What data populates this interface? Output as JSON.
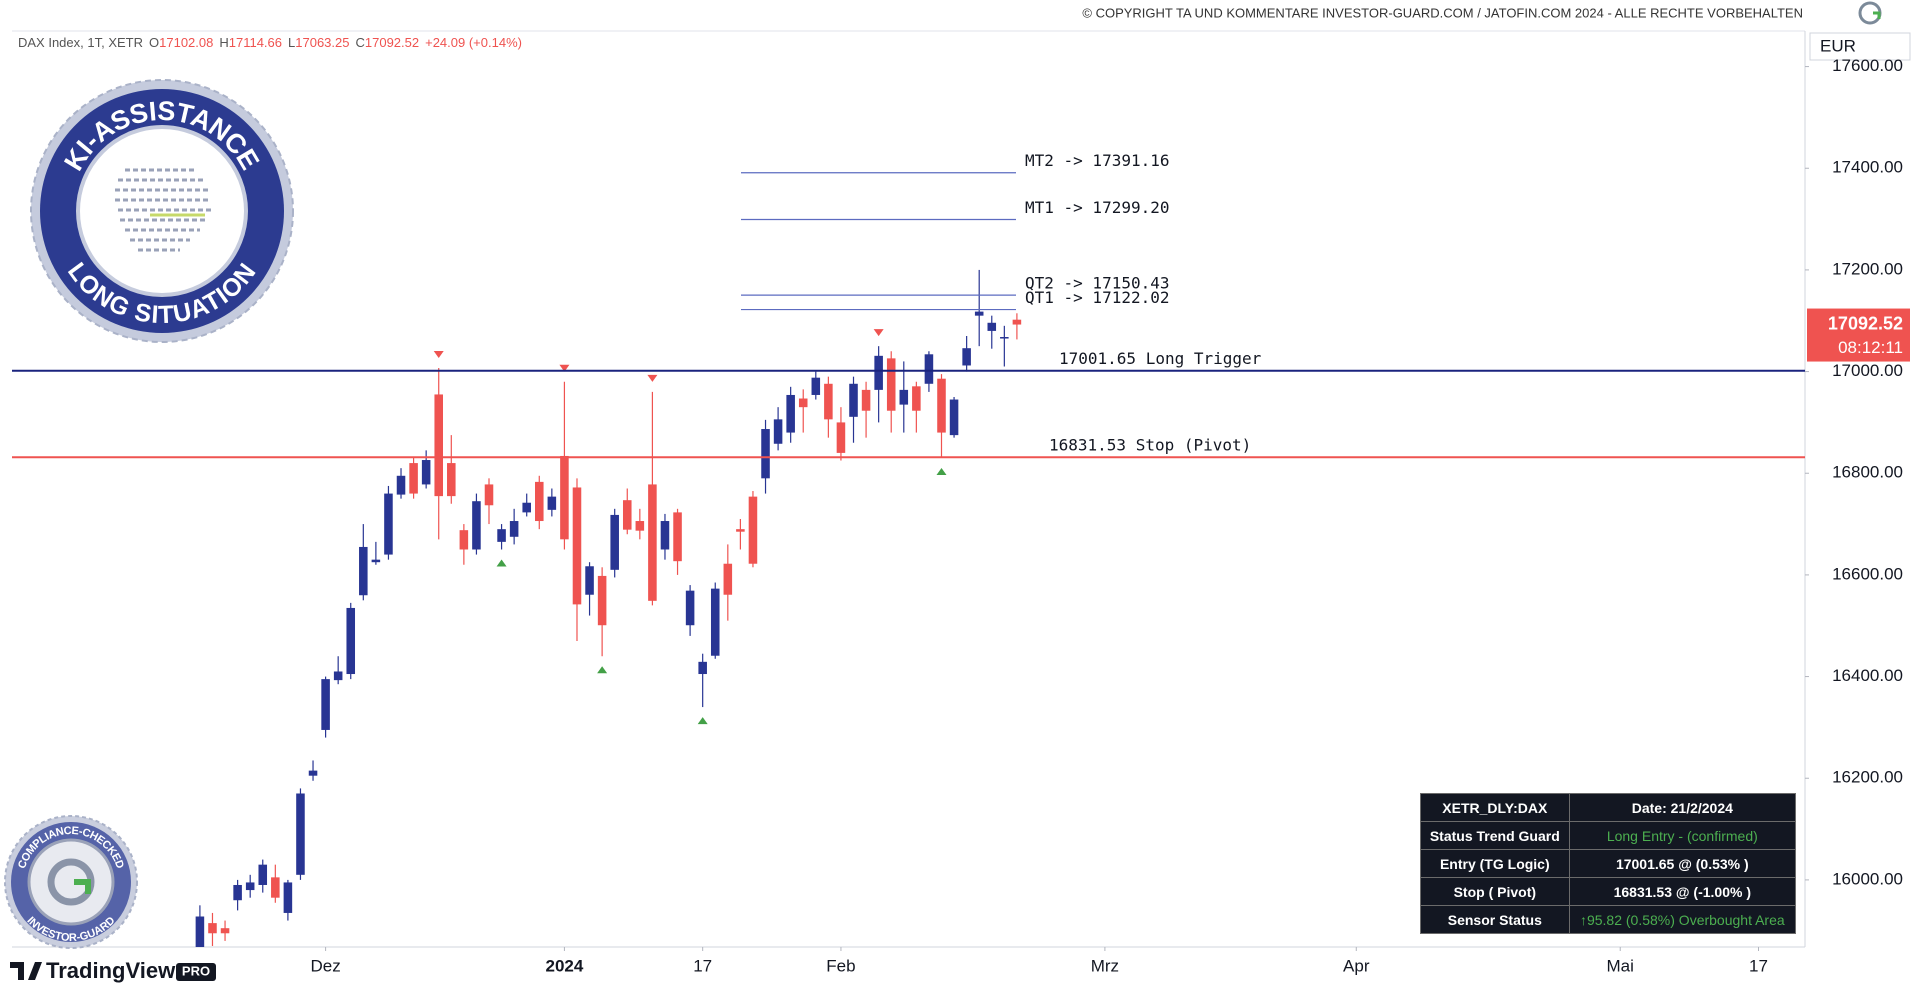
{
  "copyright": "© COPYRIGHT TA UND KOMMENTARE INVESTOR-GUARD.COM / JATOFIN.COM 2024 - ALLE RECHTE VORBEHALTEN",
  "currency": "EUR",
  "badge": {
    "top": "KI-ASSISTANCE",
    "bottom": "LONG SITUATION"
  },
  "compliance": {
    "top": "COMPLIANCE-CHECKED",
    "bottom": "INVESTOR-GUARD"
  },
  "brand": {
    "name": "TradingView",
    "tier": "PRO"
  },
  "table": {
    "rows": [
      [
        "XETR_DLY:DAX",
        "Date: 21/2/2024"
      ],
      [
        "Status Trend Guard",
        "Long Entry - (confirmed)"
      ],
      [
        "Entry (TG Logic)",
        "17001.65 @ (0.53% )"
      ],
      [
        "Stop ( Pivot)",
        "16831.53 @ (-1.00% )"
      ],
      [
        "Sensor Status",
        "↑95.82 (0.58%)  Overbought Area"
      ]
    ]
  },
  "chart_data": {
    "type": "candlestick",
    "title": "DAX Index, 1T, XETR",
    "legend_labels": [
      "O",
      "H",
      "L",
      "C"
    ],
    "change": "+24.09 (+0.14%)",
    "countdown": "08:12:11",
    "up_color": "#283593",
    "down_color": "#ef5350",
    "x": [
      -10,
      -9,
      -8,
      -7,
      -6,
      -5,
      -4,
      -3,
      -2,
      -1,
      0,
      1,
      2,
      3,
      4,
      5,
      6,
      7,
      8,
      9,
      10,
      11,
      12,
      13,
      14,
      15,
      16,
      17,
      18,
      19,
      20,
      21,
      22,
      23,
      24,
      25,
      26,
      27,
      28,
      29,
      30,
      31,
      32,
      33,
      34,
      35,
      36,
      37,
      38,
      39,
      40,
      41,
      42,
      43,
      44,
      45,
      46,
      47,
      48,
      49,
      50,
      51,
      52,
      53,
      54,
      55
    ],
    "open": [
      15850,
      15915,
      15905,
      15960,
      15980,
      15990,
      16005,
      15935,
      16010,
      16205,
      16295,
      16393,
      16405,
      16560,
      16625,
      16640,
      16758,
      16820,
      16778,
      16955,
      16820,
      16688,
      16650,
      16778,
      16665,
      16675,
      16723,
      16783,
      16728,
      16834,
      16772,
      16561,
      16598,
      16610,
      16747,
      16706,
      16778,
      16650,
      16723,
      16501,
      16405,
      16441,
      16622,
      16690,
      16754,
      16790,
      16858,
      16880,
      16947,
      16954,
      16976,
      16900,
      16911,
      16964,
      16964,
      17026,
      16935,
      16971,
      16976,
      16986,
      16875,
      17012,
      17110,
      17080,
      17065,
      17102.08
    ],
    "high": [
      15950,
      15935,
      15920,
      16000,
      16010,
      16040,
      16030,
      16000,
      16180,
      16235,
      16400,
      16440,
      16545,
      16700,
      16665,
      16775,
      16810,
      16830,
      16845,
      17007,
      16875,
      16700,
      16760,
      16790,
      16700,
      16730,
      16760,
      16795,
      16770,
      16980,
      16790,
      16625,
      16615,
      16730,
      16770,
      16730,
      16960,
      16720,
      16730,
      16580,
      16445,
      16585,
      16660,
      16710,
      16765,
      16905,
      16930,
      16970,
      16965,
      17000,
      16990,
      16930,
      16990,
      16980,
      17050,
      17040,
      17020,
      16980,
      17040,
      16995,
      16950,
      17070,
      17200,
      17110,
      17090,
      17114.66
    ],
    "low": [
      15840,
      15870,
      15880,
      15940,
      15965,
      15975,
      15955,
      15920,
      16000,
      16195,
      16280,
      16385,
      16395,
      16550,
      16620,
      16630,
      16750,
      16750,
      16770,
      16670,
      16740,
      16620,
      16640,
      16700,
      16650,
      16660,
      16715,
      16690,
      16715,
      16650,
      16470,
      16520,
      16440,
      16595,
      16680,
      16670,
      16540,
      16630,
      16600,
      16480,
      16340,
      16435,
      16510,
      16650,
      16615,
      16760,
      16845,
      16860,
      16880,
      16945,
      16870,
      16825,
      16860,
      16870,
      16900,
      16880,
      16880,
      16880,
      16960,
      16830,
      16870,
      17000,
      17050,
      17045,
      17010,
      17063.25
    ],
    "close": [
      15928,
      15895,
      15895,
      15990,
      15995,
      16030,
      15965,
      15995,
      16170,
      16215,
      16395,
      16410,
      16535,
      16655,
      16630,
      16760,
      16795,
      16760,
      16826,
      16755,
      16755,
      16650,
      16745,
      16737,
      16690,
      16706,
      16742,
      16706,
      16754,
      16670,
      16542,
      16617,
      16501,
      16718,
      16689,
      16687,
      16549,
      16706,
      16627,
      16569,
      16429,
      16573,
      16561,
      16685,
      16622,
      16887,
      16906,
      16954,
      16930,
      16988,
      16906,
      16840,
      16976,
      16923,
      17031,
      16923,
      16964,
      16923,
      17034,
      16880,
      16945,
      17046,
      17118,
      17096,
      17068,
      17092.52
    ],
    "sell_signals": [
      9,
      19,
      26,
      44
    ],
    "buy_signals": [
      14,
      22,
      30,
      49
    ],
    "signal_colors": {
      "sell": "#ef5350",
      "buy": "#43a047"
    },
    "levels": [
      {
        "label": "MT2 -> 17391.16",
        "value": 17391.16,
        "kind": "target",
        "color": "#5c6bc0"
      },
      {
        "label": "MT1 -> 17299.20",
        "value": 17299.2,
        "kind": "target",
        "color": "#5c6bc0"
      },
      {
        "label": "QT2 -> 17150.43",
        "value": 17150.43,
        "kind": "target",
        "color": "#5c6bc0"
      },
      {
        "label": "QT1 -> 17122.02",
        "value": 17122.02,
        "kind": "target",
        "color": "#5c6bc0"
      },
      {
        "label": "17001.65  Long Trigger",
        "value": 17001.65,
        "kind": "trigger",
        "color": "#1a237e"
      },
      {
        "label": "16831.53  Stop (Pivot)",
        "value": 16831.53,
        "kind": "stop",
        "color": "#ef5350"
      }
    ],
    "xlim": [
      -24.95,
      117.7
    ],
    "xticks": [
      {
        "value": 0,
        "label": "Dez"
      },
      {
        "value": 19,
        "label": "2024"
      },
      {
        "value": 30,
        "label": "17"
      },
      {
        "value": 41,
        "label": "Feb"
      },
      {
        "value": 62,
        "label": "Mrz"
      },
      {
        "value": 82,
        "label": "Apr"
      },
      {
        "value": 103,
        "label": "Mai"
      },
      {
        "value": 114,
        "label": "17"
      }
    ],
    "ylim": [
      15868,
      17670
    ],
    "yticks": [
      {
        "value": 16000,
        "label": "16000.00"
      },
      {
        "value": 16200,
        "label": "16200.00"
      },
      {
        "value": 16400,
        "label": "16400.00"
      },
      {
        "value": 16600,
        "label": "16600.00"
      },
      {
        "value": 16800,
        "label": "16800.00"
      },
      {
        "value": 17000,
        "label": "17000.00"
      },
      {
        "value": 17200,
        "label": "17200.00"
      },
      {
        "value": 17400,
        "label": "17400.00"
      },
      {
        "value": 17600,
        "label": "17600.00"
      }
    ],
    "grid": false
  }
}
